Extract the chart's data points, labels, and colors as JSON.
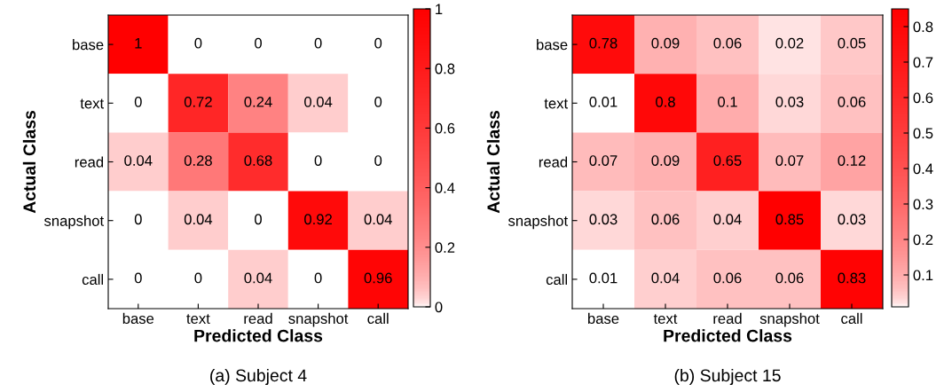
{
  "chart_data": [
    {
      "type": "heatmap",
      "xlabel": "Predicted Class",
      "ylabel": "Actual Class",
      "annotations": [
        "(a) Subject 4"
      ],
      "categories": [
        "base",
        "text",
        "read",
        "snapshot",
        "call"
      ],
      "y_categories": [
        "base",
        "text",
        "read",
        "snapshot",
        "call"
      ],
      "cells": [
        [
          1,
          0,
          0,
          0,
          0
        ],
        [
          0,
          0.72,
          0.24,
          0.04,
          0
        ],
        [
          0.04,
          0.28,
          0.68,
          0,
          0
        ],
        [
          0,
          0.04,
          0,
          0.92,
          0.04
        ],
        [
          0,
          0,
          0.04,
          0,
          0.96
        ]
      ],
      "data_labels": true,
      "clim": [
        0,
        1
      ],
      "cticks": [
        0,
        0.2,
        0.4,
        0.6,
        0.8,
        1
      ],
      "colors": [
        "#ffffff",
        "#ff0000"
      ]
    },
    {
      "type": "heatmap",
      "xlabel": "Predicted Class",
      "ylabel": "Actual Class",
      "annotations": [
        "(b) Subject 15"
      ],
      "categories": [
        "base",
        "text",
        "read",
        "snapshot",
        "call"
      ],
      "y_categories": [
        "base",
        "text",
        "read",
        "snapshot",
        "call"
      ],
      "cells": [
        [
          0.78,
          0.09,
          0.06,
          0.02,
          0.05
        ],
        [
          0.01,
          0.8,
          0.1,
          0.03,
          0.06
        ],
        [
          0.07,
          0.09,
          0.65,
          0.07,
          0.12
        ],
        [
          0.03,
          0.06,
          0.04,
          0.85,
          0.03
        ],
        [
          0.01,
          0.04,
          0.06,
          0.06,
          0.83
        ]
      ],
      "data_labels": true,
      "clim": [
        0.01,
        0.85
      ],
      "cticks": [
        0.1,
        0.2,
        0.3,
        0.4,
        0.5,
        0.6,
        0.7,
        0.8
      ],
      "colors": [
        "#ffffff",
        "#ff0000"
      ]
    }
  ]
}
